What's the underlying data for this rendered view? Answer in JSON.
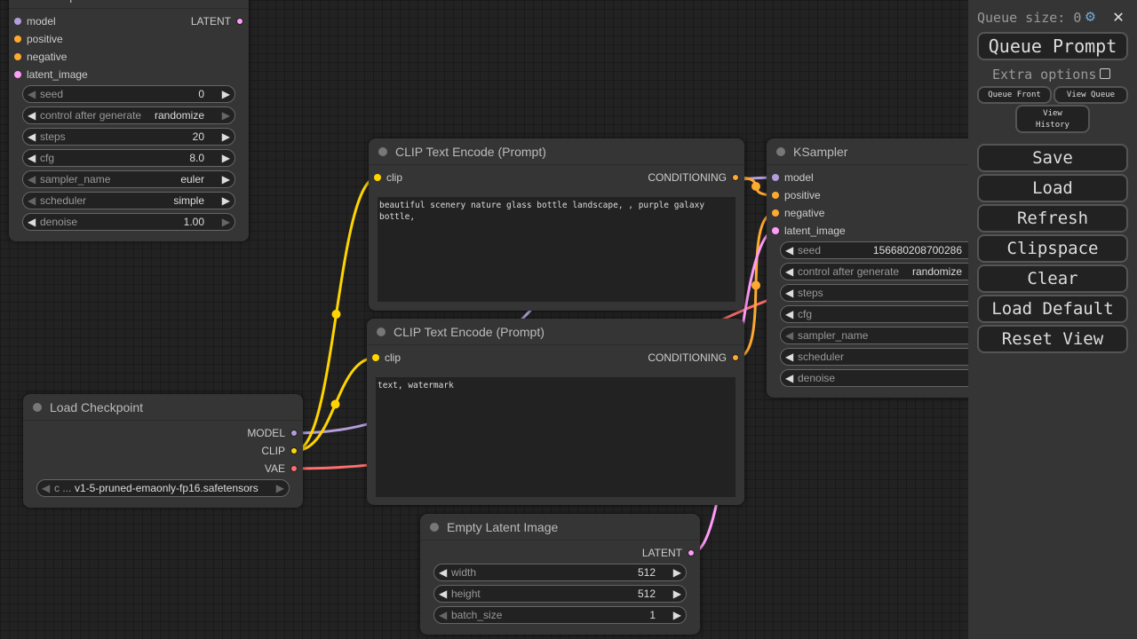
{
  "colors": {
    "model": "#b39ddb",
    "clip": "#ffd500",
    "conditioning": "#ffa931",
    "latent": "#ff9cf9",
    "vae": "#ff6e6e"
  },
  "nodes": {
    "ksampler_left": {
      "title": "KSampler",
      "inputs": [
        {
          "label": "model",
          "type": "model"
        },
        {
          "label": "positive",
          "type": "conditioning"
        },
        {
          "label": "negative",
          "type": "conditioning"
        },
        {
          "label": "latent_image",
          "type": "latent"
        }
      ],
      "outputs": [
        {
          "label": "LATENT",
          "type": "latent"
        }
      ],
      "widgets": [
        {
          "name": "seed",
          "value": "0",
          "left_enabled": false,
          "right_enabled": true
        },
        {
          "name": "control after generate",
          "value": "randomize",
          "left_enabled": true,
          "right_enabled": false
        },
        {
          "name": "steps",
          "value": "20",
          "left_enabled": true,
          "right_enabled": true
        },
        {
          "name": "cfg",
          "value": "8.0",
          "left_enabled": true,
          "right_enabled": true
        },
        {
          "name": "sampler_name",
          "value": "euler",
          "left_enabled": false,
          "right_enabled": true
        },
        {
          "name": "scheduler",
          "value": "simple",
          "left_enabled": false,
          "right_enabled": true
        },
        {
          "name": "denoise",
          "value": "1.00",
          "left_enabled": true,
          "right_enabled": false
        }
      ]
    },
    "clip_pos": {
      "title": "CLIP Text Encode (Prompt)",
      "inputs": [
        {
          "label": "clip",
          "type": "clip"
        }
      ],
      "outputs": [
        {
          "label": "CONDITIONING",
          "type": "conditioning"
        }
      ],
      "text": "beautiful scenery nature glass bottle landscape, , purple galaxy bottle,"
    },
    "clip_neg": {
      "title": "CLIP Text Encode (Prompt)",
      "inputs": [
        {
          "label": "clip",
          "type": "clip"
        }
      ],
      "outputs": [
        {
          "label": "CONDITIONING",
          "type": "conditioning"
        }
      ],
      "text": "text, watermark"
    },
    "checkpoint": {
      "title": "Load Checkpoint",
      "inputs": [],
      "outputs": [
        {
          "label": "MODEL",
          "type": "model"
        },
        {
          "label": "CLIP",
          "type": "clip"
        },
        {
          "label": "VAE",
          "type": "vae"
        }
      ],
      "widgets": [
        {
          "name": "c ...",
          "value": "v1-5-pruned-emaonly-fp16.safetensors",
          "left_enabled": false,
          "right_enabled": false
        }
      ]
    },
    "latent": {
      "title": "Empty Latent Image",
      "inputs": [],
      "outputs": [
        {
          "label": "LATENT",
          "type": "latent"
        }
      ],
      "widgets": [
        {
          "name": "width",
          "value": "512",
          "left_enabled": true,
          "right_enabled": true
        },
        {
          "name": "height",
          "value": "512",
          "left_enabled": true,
          "right_enabled": true
        },
        {
          "name": "batch_size",
          "value": "1",
          "left_enabled": false,
          "right_enabled": true
        }
      ]
    },
    "ksampler_right": {
      "title": "KSampler",
      "inputs": [
        {
          "label": "model",
          "type": "model"
        },
        {
          "label": "positive",
          "type": "conditioning"
        },
        {
          "label": "negative",
          "type": "conditioning"
        },
        {
          "label": "latent_image",
          "type": "latent"
        }
      ],
      "outputs": [],
      "widgets": [
        {
          "name": "seed",
          "value": "156680208700286",
          "left_enabled": true,
          "right_enabled": true
        },
        {
          "name": "control after generate",
          "value": "randomize",
          "left_enabled": true,
          "right_enabled": true
        },
        {
          "name": "steps",
          "value": "",
          "left_enabled": true,
          "right_enabled": true
        },
        {
          "name": "cfg",
          "value": "",
          "left_enabled": true,
          "right_enabled": true
        },
        {
          "name": "sampler_name",
          "value": "",
          "left_enabled": false,
          "right_enabled": true
        },
        {
          "name": "scheduler",
          "value": "",
          "left_enabled": true,
          "right_enabled": true
        },
        {
          "name": "denoise",
          "value": "",
          "left_enabled": true,
          "right_enabled": true
        }
      ]
    }
  },
  "sidebar": {
    "queue_size_label": "Queue size: 0",
    "gear_icon": "gear-icon",
    "close_icon": "close-icon",
    "queue_prompt": "Queue Prompt",
    "extra_options": "Extra options",
    "extra_options_checked": false,
    "queue_front": "Queue Front",
    "view_queue": "View Queue",
    "view_history": "View History",
    "buttons": [
      "Save",
      "Load",
      "Refresh",
      "Clipspace",
      "Clear",
      "Load Default",
      "Reset View"
    ]
  }
}
